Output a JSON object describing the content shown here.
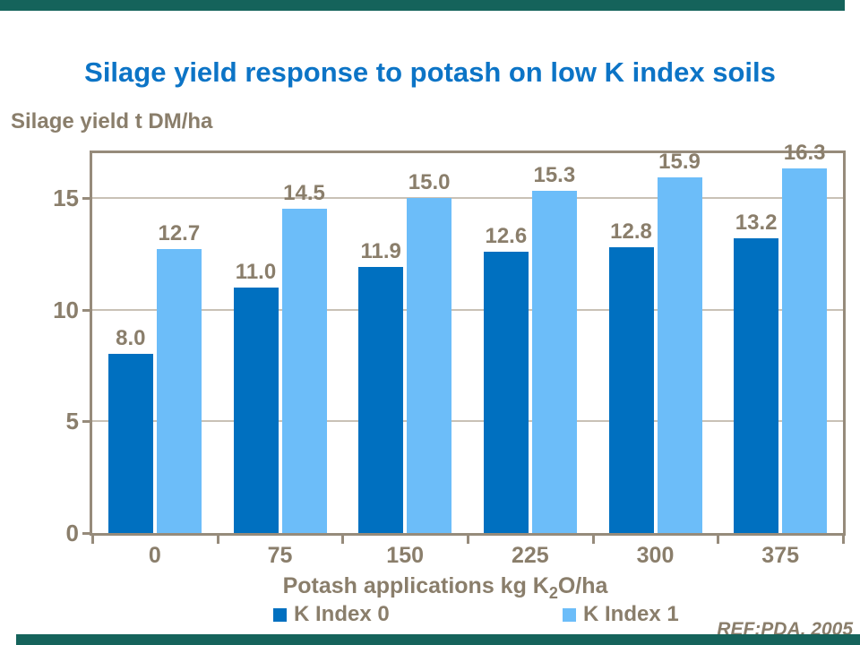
{
  "accent": {
    "color": "#15635B"
  },
  "title": {
    "text": "Silage yield response to potash on low K index soils",
    "color": "#0C74C6"
  },
  "footer": {
    "reference": "REF:PDA, 2005"
  },
  "style_colors": {
    "text": "#8A7E6B",
    "frame_border": "#968B7B",
    "gridline": "#C9C1B6",
    "background": "#FFFFFF"
  },
  "chart_data": {
    "type": "bar",
    "title": "Silage yield response to potash on low K index soils",
    "categories": [
      "0",
      "75",
      "150",
      "225",
      "300",
      "375"
    ],
    "series": [
      {
        "name": "K Index 0",
        "color": "#0070C0",
        "values": [
          8.0,
          11.0,
          11.9,
          12.6,
          12.8,
          13.2
        ]
      },
      {
        "name": "K Index 1",
        "color": "#6CBDF9",
        "values": [
          12.7,
          14.5,
          15.0,
          15.3,
          15.9,
          16.3
        ]
      }
    ],
    "ylabel": "Silage yield t DM/ha",
    "xlabel": "Potash applications kg K2O/ha",
    "xlabel_parts": {
      "prefix": "Potash applications kg K",
      "subscript": "2",
      "suffix": "O/ha"
    },
    "yticks": [
      0,
      5,
      10,
      15
    ],
    "ylim": [
      0,
      17
    ],
    "grid": "horizontal",
    "legend_position": "bottom",
    "data_labels": true
  }
}
